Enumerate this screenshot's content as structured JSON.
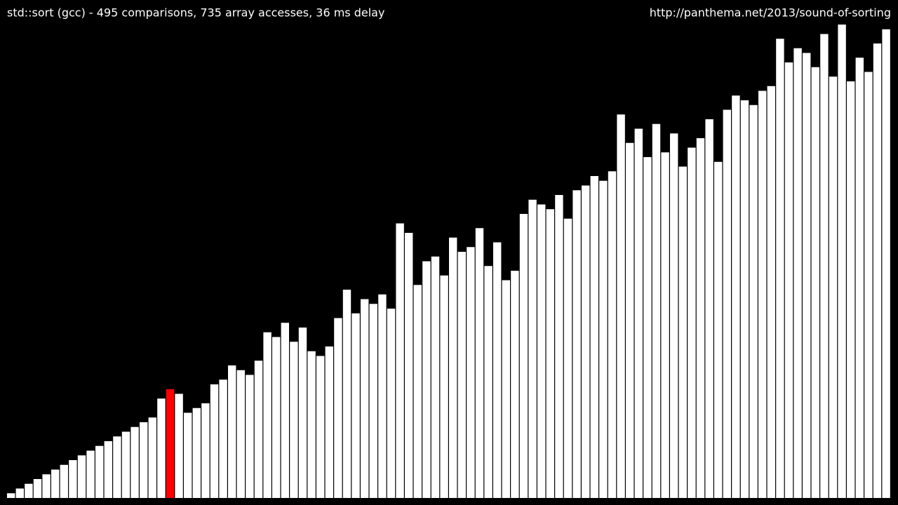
{
  "chart_data": {
    "type": "bar",
    "title": "std::sort (gcc) - 495 comparisons, 735 array accesses, 36 ms delay",
    "url": "http://panthema.net/2013/sound-of-sorting",
    "values": [
      1,
      2,
      3,
      4,
      5,
      6,
      7,
      8,
      9,
      10,
      11,
      12,
      13,
      14,
      15,
      16,
      17,
      21,
      23,
      22,
      18,
      19,
      20,
      24,
      25,
      28,
      27,
      26,
      29,
      35,
      34,
      37,
      33,
      36,
      31,
      30,
      32,
      38,
      44,
      39,
      42,
      41,
      43,
      40,
      58,
      56,
      45,
      50,
      51,
      47,
      55,
      52,
      53,
      57,
      49,
      54,
      46,
      48,
      60,
      63,
      62,
      61,
      64,
      59,
      65,
      66,
      68,
      67,
      69,
      81,
      75,
      78,
      72,
      79,
      73,
      77,
      70,
      74,
      76,
      80,
      71,
      82,
      85,
      84,
      83,
      86,
      87,
      97,
      92,
      95,
      94,
      91,
      98,
      89,
      100,
      88,
      93,
      90,
      96,
      99
    ],
    "color": "#ffffff",
    "highlight_color": "#ff0000",
    "highlight": 18,
    "ylim": [
      0,
      100
    ]
  }
}
